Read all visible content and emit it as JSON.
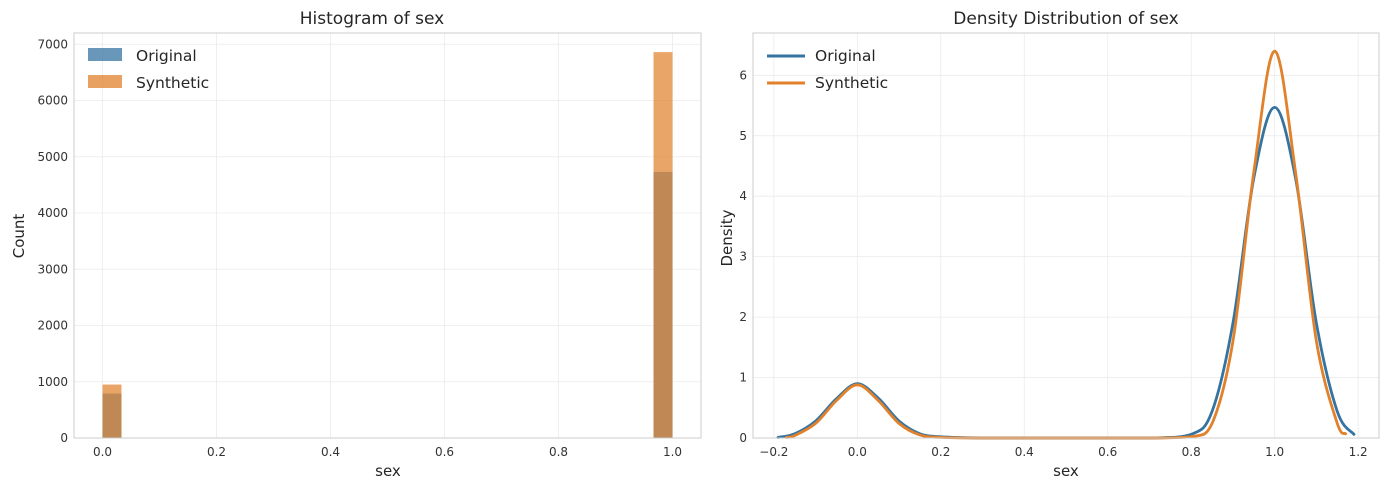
{
  "colors": {
    "original": "#3574a1",
    "synthetic": "#e1812c"
  },
  "chart_data": [
    {
      "type": "bar",
      "title": "Histogram of sex",
      "xlabel": "sex",
      "ylabel": "Count",
      "xlim": [
        -0.05,
        1.05
      ],
      "ylim": [
        0,
        7200
      ],
      "xticks": [
        "0.0",
        "0.2",
        "0.4",
        "0.6",
        "0.8",
        "1.0"
      ],
      "yticks": [
        "0",
        "1000",
        "2000",
        "3000",
        "4000",
        "5000",
        "6000",
        "7000"
      ],
      "legend_position": "top-left",
      "grid": true,
      "bin_width": 0.0333,
      "series": [
        {
          "name": "Original",
          "x": [
            0.0,
            0.9667
          ],
          "values": [
            790,
            4730
          ]
        },
        {
          "name": "Synthetic",
          "x": [
            0.0,
            0.9667
          ],
          "values": [
            950,
            6860
          ]
        }
      ]
    },
    {
      "type": "line",
      "title": "Density Distribution of sex",
      "xlabel": "sex",
      "ylabel": "Density",
      "xlim": [
        -0.25,
        1.25
      ],
      "ylim": [
        0,
        6.7
      ],
      "xticks": [
        "−0.2",
        "0.0",
        "0.2",
        "0.4",
        "0.6",
        "0.8",
        "1.0",
        "1.2"
      ],
      "yticks": [
        "0",
        "1",
        "2",
        "3",
        "4",
        "5",
        "6"
      ],
      "legend_position": "top-left",
      "grid": true,
      "series": [
        {
          "name": "Original",
          "x": [
            -0.19,
            -0.15,
            -0.1,
            -0.05,
            0.0,
            0.05,
            0.1,
            0.15,
            0.2,
            0.3,
            0.5,
            0.7,
            0.8,
            0.85,
            0.9,
            0.95,
            1.0,
            1.05,
            1.1,
            1.15,
            1.19
          ],
          "y": [
            0.01,
            0.07,
            0.28,
            0.65,
            0.9,
            0.66,
            0.28,
            0.07,
            0.02,
            0.0,
            0.0,
            0.0,
            0.06,
            0.44,
            1.9,
            4.3,
            5.47,
            4.3,
            1.9,
            0.44,
            0.06
          ]
        },
        {
          "name": "Synthetic",
          "x": [
            -0.17,
            -0.15,
            -0.1,
            -0.05,
            0.0,
            0.05,
            0.1,
            0.15,
            0.2,
            0.3,
            0.5,
            0.7,
            0.8,
            0.85,
            0.9,
            0.95,
            1.0,
            1.05,
            1.1,
            1.15,
            1.17
          ],
          "y": [
            0.01,
            0.04,
            0.24,
            0.62,
            0.88,
            0.62,
            0.24,
            0.05,
            0.01,
            0.0,
            0.0,
            0.0,
            0.02,
            0.24,
            1.6,
            4.4,
            6.4,
            4.4,
            1.6,
            0.24,
            0.07
          ]
        }
      ]
    }
  ]
}
